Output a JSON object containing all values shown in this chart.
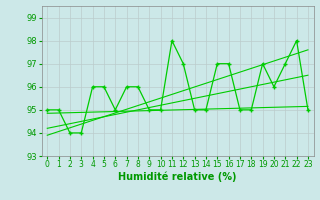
{
  "title": "",
  "xlabel": "Humidité relative (%)",
  "ylabel": "",
  "bg_color": "#cce8e8",
  "grid_color": "#bbcccc",
  "line_color": "#00cc00",
  "xlim": [
    -0.5,
    23.5
  ],
  "ylim": [
    93.0,
    99.5
  ],
  "yticks": [
    93,
    94,
    95,
    96,
    97,
    98,
    99
  ],
  "xticks": [
    0,
    1,
    2,
    3,
    4,
    5,
    6,
    7,
    8,
    9,
    10,
    11,
    12,
    13,
    14,
    15,
    16,
    17,
    18,
    19,
    20,
    21,
    22,
    23
  ],
  "main_x": [
    0,
    1,
    2,
    3,
    4,
    5,
    6,
    7,
    8,
    9,
    10,
    11,
    12,
    13,
    14,
    15,
    16,
    17,
    18,
    19,
    20,
    21,
    22,
    23
  ],
  "main_y": [
    95,
    95,
    94,
    94,
    96,
    96,
    95,
    96,
    96,
    95,
    95,
    98,
    97,
    95,
    95,
    97,
    97,
    95,
    95,
    97,
    96,
    97,
    98,
    95
  ],
  "trend1_x": [
    0,
    23
  ],
  "trend1_y": [
    94.85,
    95.15
  ],
  "trend2_x": [
    0,
    23
  ],
  "trend2_y": [
    94.2,
    96.5
  ],
  "trend3_x": [
    0,
    23
  ],
  "trend3_y": [
    93.9,
    97.6
  ],
  "font_color": "#009900",
  "tick_fontsize": 5.5,
  "xlabel_fontsize": 7
}
